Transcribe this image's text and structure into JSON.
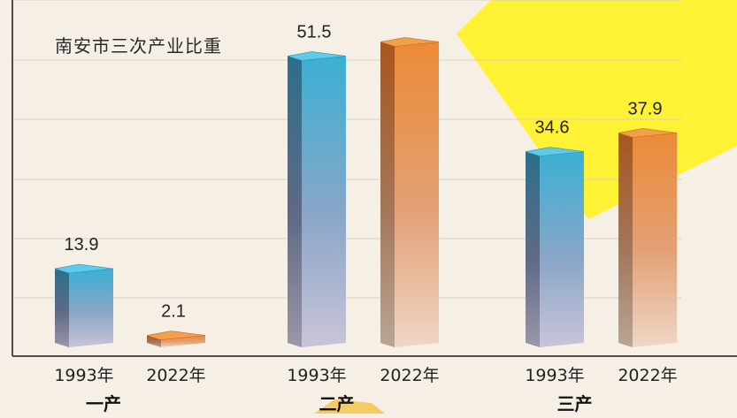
{
  "chart_data": {
    "type": "bar",
    "title": "南安市三次产业比重",
    "groups": [
      "一产",
      "二产",
      "三产"
    ],
    "series": [
      {
        "name": "1993年",
        "values": [
          13.9,
          51.5,
          34.6
        ]
      },
      {
        "name": "2022年",
        "values": [
          2.1,
          54.0,
          37.9
        ]
      }
    ],
    "bar_labels": [
      [
        "13.9",
        "2.1"
      ],
      [
        "51.5",
        ""
      ],
      [
        "34.6",
        "37.9"
      ]
    ],
    "x_tick_labels": [
      "1993年",
      "2022年"
    ],
    "ylim": [
      0,
      57
    ],
    "grid": true,
    "colors": {
      "series_1993_top": "#3ab4d8",
      "series_1993_bottom": "#c9c6d6",
      "series_2022_top": "#e8883a",
      "series_2022_bottom": "#ecc9b3",
      "highlight": "#fff133",
      "background": "#f6efe6"
    }
  }
}
